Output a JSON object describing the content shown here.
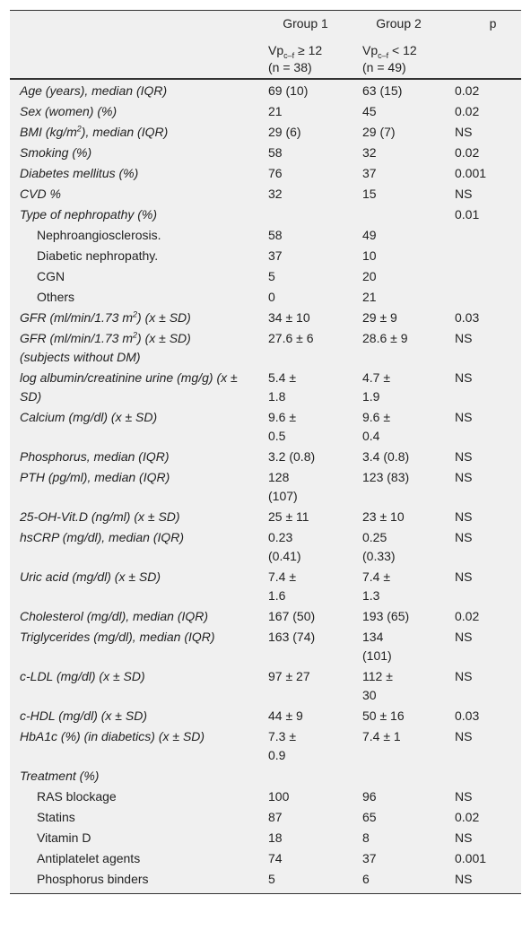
{
  "table": {
    "header": {
      "group1": "Group 1",
      "group2": "Group 2",
      "p": "p",
      "group1_sub": [
        {
          "text": "Vp"
        },
        {
          "text": "c–f",
          "style": "sub"
        },
        {
          "text": " ≥ 12"
        }
      ],
      "group1_n": "(n = 38)",
      "group2_sub": [
        {
          "text": "Vp"
        },
        {
          "text": "c–f",
          "style": "sub"
        },
        {
          "text": " < 12"
        }
      ],
      "group2_n": "(n = 49)"
    },
    "rows": [
      {
        "label": [
          {
            "text": "Age (years), median (IQR)"
          }
        ],
        "g1": "69 (10)",
        "g2": "63 (15)",
        "p": "0.02"
      },
      {
        "label": [
          {
            "text": "Sex (women) (%)"
          }
        ],
        "g1": "21",
        "g2": "45",
        "p": "0.02"
      },
      {
        "label": [
          {
            "text": "BMI (kg/m"
          },
          {
            "text": "2",
            "style": "sup"
          },
          {
            "text": "), median (IQR)"
          }
        ],
        "g1": "29 (6)",
        "g2": "29 (7)",
        "p": "NS"
      },
      {
        "label": [
          {
            "text": "Smoking (%)"
          }
        ],
        "g1": "58",
        "g2": "32",
        "p": "0.02"
      },
      {
        "label": [
          {
            "text": "Diabetes mellitus (%)"
          }
        ],
        "g1": "76",
        "g2": "37",
        "p": "0.001"
      },
      {
        "label": [
          {
            "text": "CVD %"
          }
        ],
        "g1": "32",
        "g2": "15",
        "p": "NS"
      },
      {
        "label": [
          {
            "text": "Type of nephropathy (%)"
          }
        ],
        "p": "0.01"
      },
      {
        "label": [
          {
            "text": "Nephroangiosclerosis."
          }
        ],
        "indent": true,
        "g1": "58",
        "g2": "49"
      },
      {
        "label": [
          {
            "text": "Diabetic nephropathy."
          }
        ],
        "indent": true,
        "g1": "37",
        "g2": "10"
      },
      {
        "label": [
          {
            "text": "CGN"
          }
        ],
        "indent": true,
        "g1": "5",
        "g2": "20"
      },
      {
        "label": [
          {
            "text": "Others"
          }
        ],
        "indent": true,
        "g1": "0",
        "g2": "21"
      },
      {
        "label": [
          {
            "text": "GFR (ml/min/1.73 m"
          },
          {
            "text": "2",
            "style": "sup"
          },
          {
            "text": ") (x ± SD)"
          }
        ],
        "g1": "34 ± 10",
        "g2": "29 ± 9",
        "p": "0.03"
      },
      {
        "label": [
          {
            "text": "GFR (ml/min/1.73 m"
          },
          {
            "text": "2",
            "style": "sup"
          },
          {
            "text": ") (x ± SD) (subjects without DM)"
          }
        ],
        "g1": "27.6 ± 6",
        "g2": "28.6 ± 9",
        "p": "NS"
      },
      {
        "label": [
          {
            "text": "log albumin/creatinine urine (mg/g) (x ± SD)"
          }
        ],
        "g1": "5.4 ± 1.8",
        "g2": "4.7 ± 1.9",
        "p": "NS"
      },
      {
        "label": [
          {
            "text": "Calcium (mg/dl) (x ± SD)"
          }
        ],
        "g1": "9.6 ± 0.5",
        "g2": "9.6 ± 0.4",
        "p": "NS"
      },
      {
        "label": [
          {
            "text": "Phosphorus, median (IQR)"
          }
        ],
        "g1": "3.2 (0.8)",
        "g2": "3.4 (0.8)",
        "p": "NS"
      },
      {
        "label": [
          {
            "text": "PTH (pg/ml), median (IQR)"
          }
        ],
        "g1": "128 (107)",
        "g2": "123 (83)",
        "p": "NS"
      },
      {
        "label": [
          {
            "text": "25-OH-Vit.D (ng/ml) (x ± SD)"
          }
        ],
        "g1": "25 ± 11",
        "g2": "23 ± 10",
        "p": "NS"
      },
      {
        "label": [
          {
            "text": "hsCRP (mg/dl), median (IQR)"
          }
        ],
        "g1": "0.23 (0.41)",
        "g2": "0.25 (0.33)",
        "p": "NS"
      },
      {
        "label": [
          {
            "text": "Uric acid (mg/dl) (x ± SD)"
          }
        ],
        "g1": "7.4 ± 1.6",
        "g2": "7.4 ± 1.3",
        "p": "NS"
      },
      {
        "label": [
          {
            "text": "Cholesterol (mg/dl), median (IQR)"
          }
        ],
        "g1": "167 (50)",
        "g2": "193 (65)",
        "p": "0.02"
      },
      {
        "label": [
          {
            "text": "Triglycerides (mg/dl), median (IQR)"
          }
        ],
        "g1": "163 (74)",
        "g2": "134 (101)",
        "p": "NS"
      },
      {
        "label": [
          {
            "text": "c-LDL (mg/dl) (x ± SD)"
          }
        ],
        "g1": "97 ± 27",
        "g2": "112 ± 30",
        "p": "NS"
      },
      {
        "label": [
          {
            "text": "c-HDL (mg/dl) (x ± SD)"
          }
        ],
        "g1": "44 ± 9",
        "g2": "50 ± 16",
        "p": "0.03"
      },
      {
        "label": [
          {
            "text": "HbA1c (%) (in diabetics) (x ± SD)"
          }
        ],
        "g1": "7.3 ± 0.9",
        "g2": "7.4 ± 1",
        "p": "NS"
      },
      {
        "label": [
          {
            "text": "Treatment (%)"
          }
        ]
      },
      {
        "label": [
          {
            "text": "RAS blockage"
          }
        ],
        "indent": true,
        "g1": "100",
        "g2": "96",
        "p": "NS"
      },
      {
        "label": [
          {
            "text": "Statins"
          }
        ],
        "indent": true,
        "g1": "87",
        "g2": "65",
        "p": "0.02"
      },
      {
        "label": [
          {
            "text": "Vitamin D"
          }
        ],
        "indent": true,
        "g1": "18",
        "g2": "8",
        "p": "NS"
      },
      {
        "label": [
          {
            "text": "Antiplatelet agents"
          }
        ],
        "indent": true,
        "g1": "74",
        "g2": "37",
        "p": "0.001"
      },
      {
        "label": [
          {
            "text": "Phosphorus binders"
          }
        ],
        "indent": true,
        "g1": "5",
        "g2": "6",
        "p": "NS"
      }
    ]
  }
}
